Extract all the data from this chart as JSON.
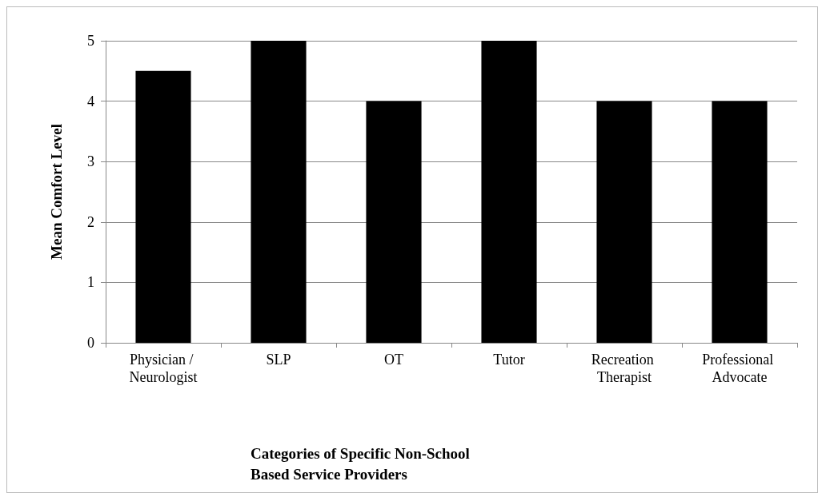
{
  "chart_data": {
    "type": "bar",
    "xlabel": "Categories of Specific Non-School Based Service Providers",
    "ylabel": "Mean Comfort Level",
    "categories": [
      "Physician / Neurologist",
      "SLP",
      "OT",
      "Tutor",
      "Recreation Therapist",
      "Professional Advocate"
    ],
    "values": [
      4.5,
      5,
      4,
      5,
      4,
      4
    ],
    "color": "#000000",
    "ylim": [
      0,
      5
    ],
    "yticks": [
      0,
      1,
      2,
      3,
      4,
      5
    ],
    "grid": "y"
  }
}
